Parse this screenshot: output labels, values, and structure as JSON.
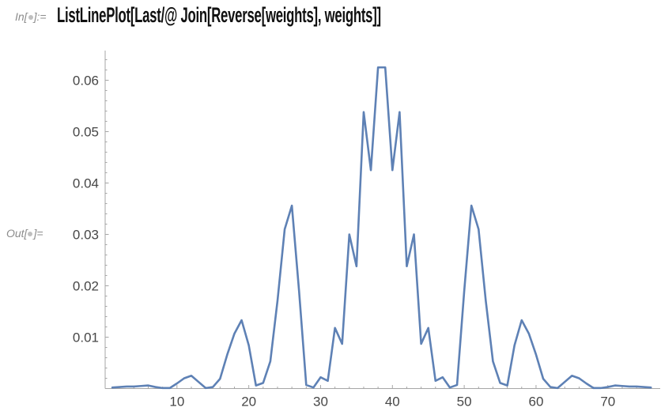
{
  "notebook": {
    "in_label_prefix": "In[",
    "in_label_suffix": "]:=",
    "out_label_prefix": "Out[",
    "out_label_suffix": "]=",
    "code": "ListLinePlot[Last/@ Join[Reverse[weights], weights]]"
  },
  "chart_data": {
    "type": "line",
    "title": "",
    "xlabel": "",
    "ylabel": "",
    "grid": false,
    "legend": "none",
    "x_start": 1,
    "series": [
      {
        "name": "Last /@ Join[Reverse[weights], weights]",
        "values": [
          0.0002,
          0.0003,
          0.0004,
          0.0004,
          0.0005,
          0.0006,
          0.0003,
          0.0001,
          0.0001,
          0.001,
          0.002,
          0.0025,
          0.0013,
          0.0001,
          0.0003,
          0.0019,
          0.0066,
          0.0107,
          0.0133,
          0.0084,
          0.0006,
          0.0011,
          0.0053,
          0.0171,
          0.031,
          0.0356,
          0.019,
          0.0007,
          0.0002,
          0.0022,
          0.0015,
          0.0118,
          0.0087,
          0.03,
          0.0238,
          0.0538,
          0.0425,
          0.0625,
          0.0625,
          0.0425,
          0.0538,
          0.0238,
          0.03,
          0.0087,
          0.0118,
          0.0015,
          0.0022,
          0.0002,
          0.0007,
          0.019,
          0.0356,
          0.031,
          0.0171,
          0.0053,
          0.0011,
          0.0006,
          0.0084,
          0.0133,
          0.0107,
          0.0066,
          0.0019,
          0.0003,
          0.0001,
          0.0013,
          0.0025,
          0.002,
          0.001,
          0.0001,
          0.0001,
          0.0003,
          0.0006,
          0.0005,
          0.0004,
          0.0004,
          0.0003,
          0.0002
        ]
      }
    ],
    "x_axis": {
      "min": 0,
      "max": 77.2,
      "major_ticks": [
        10,
        20,
        30,
        40,
        50,
        60,
        70
      ],
      "major_labels": [
        "10",
        "20",
        "30",
        "40",
        "50",
        "60",
        "70"
      ],
      "minor_step": 2,
      "minor_max": 76
    },
    "y_axis": {
      "min": 0,
      "max": 0.0656,
      "major_ticks": [
        0.01,
        0.02,
        0.03,
        0.04,
        0.05,
        0.06
      ],
      "major_labels": [
        "0.01",
        "0.02",
        "0.03",
        "0.04",
        "0.05",
        "0.06"
      ],
      "minor_step": 0.002,
      "minor_max": 0.064
    },
    "colors": {
      "line": "#5e81b5",
      "axis": "#a6a6a6",
      "tick_label": "#474747",
      "cell_label": "#8c8c8c",
      "code_text": "#111111"
    }
  }
}
